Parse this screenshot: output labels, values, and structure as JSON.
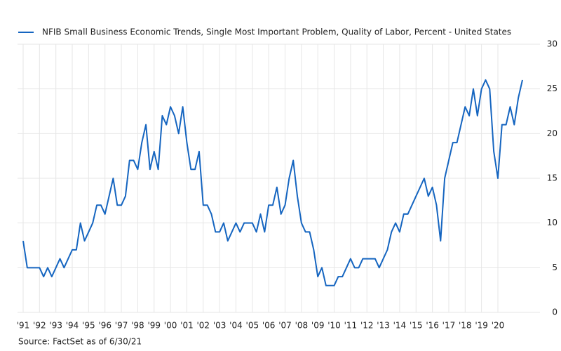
{
  "chart_data": {
    "type": "line",
    "x": [
      1991,
      1991.25,
      1991.5,
      1991.75,
      1992,
      1992.25,
      1992.5,
      1992.75,
      1993,
      1993.25,
      1993.5,
      1993.75,
      1994,
      1994.25,
      1994.5,
      1994.75,
      1995,
      1995.25,
      1995.5,
      1995.75,
      1996,
      1996.25,
      1996.5,
      1996.75,
      1997,
      1997.25,
      1997.5,
      1997.75,
      1998,
      1998.25,
      1998.5,
      1998.75,
      1999,
      1999.25,
      1999.5,
      1999.75,
      2000,
      2000.25,
      2000.5,
      2000.75,
      2001,
      2001.25,
      2001.5,
      2001.75,
      2002,
      2002.25,
      2002.5,
      2002.75,
      2003,
      2003.25,
      2003.5,
      2003.75,
      2004,
      2004.25,
      2004.5,
      2004.75,
      2005,
      2005.25,
      2005.5,
      2005.75,
      2006,
      2006.25,
      2006.5,
      2006.75,
      2007,
      2007.25,
      2007.5,
      2007.75,
      2008,
      2008.25,
      2008.5,
      2008.75,
      2009,
      2009.25,
      2009.5,
      2009.75,
      2010,
      2010.25,
      2010.5,
      2010.75,
      2011,
      2011.25,
      2011.5,
      2011.75,
      2012,
      2012.25,
      2012.5,
      2012.75,
      2013,
      2013.25,
      2013.5,
      2013.75,
      2014,
      2014.25,
      2014.5,
      2014.75,
      2015,
      2015.25,
      2015.5,
      2015.75,
      2016,
      2016.25,
      2016.5,
      2016.75,
      2017,
      2017.25,
      2017.5,
      2017.75,
      2018,
      2018.25,
      2018.5,
      2018.75,
      2019,
      2019.25,
      2019.5,
      2019.75,
      2020,
      2020.25,
      2020.5,
      2020.75,
      2021,
      2021.25,
      2021.5
    ],
    "series": [
      {
        "name": "NFIB Small Business Economic Trends, Single Most Important Problem, Quality of Labor, Percent - United States",
        "color": "#1565c0",
        "values": [
          8,
          5,
          5,
          5,
          5,
          4,
          5,
          4,
          5,
          6,
          5,
          6,
          7,
          7,
          10,
          8,
          9,
          10,
          12,
          12,
          11,
          13,
          15,
          12,
          12,
          13,
          17,
          17,
          16,
          19,
          21,
          16,
          18,
          16,
          22,
          21,
          23,
          22,
          20,
          23,
          19,
          16,
          16,
          18,
          12,
          12,
          11,
          9,
          9,
          10,
          8,
          9,
          10,
          9,
          10,
          10,
          10,
          9,
          11,
          9,
          12,
          12,
          14,
          11,
          12,
          15,
          17,
          13,
          10,
          9,
          9,
          7,
          4,
          5,
          3,
          3,
          3,
          4,
          4,
          5,
          6,
          5,
          5,
          6,
          6,
          6,
          6,
          5,
          6,
          7,
          9,
          10,
          9,
          11,
          11,
          12,
          13,
          14,
          15,
          13,
          14,
          12,
          8,
          15,
          17,
          19,
          19,
          21,
          23,
          22,
          25,
          22,
          25,
          26,
          25,
          18,
          15,
          21,
          21,
          23,
          21,
          24,
          26
        ]
      }
    ],
    "xlim": [
      1991,
      2021.5
    ],
    "xticks": [
      {
        "value": 1991,
        "label": "'91"
      },
      {
        "value": 1992,
        "label": "'92"
      },
      {
        "value": 1993,
        "label": "'93"
      },
      {
        "value": 1994,
        "label": "'94"
      },
      {
        "value": 1995,
        "label": "'95"
      },
      {
        "value": 1996,
        "label": "'96"
      },
      {
        "value": 1997,
        "label": "'97"
      },
      {
        "value": 1998,
        "label": "'98"
      },
      {
        "value": 1999,
        "label": "'99"
      },
      {
        "value": 2000,
        "label": "'00"
      },
      {
        "value": 2001,
        "label": "'01"
      },
      {
        "value": 2002,
        "label": "'02"
      },
      {
        "value": 2003,
        "label": "'03"
      },
      {
        "value": 2004,
        "label": "'04"
      },
      {
        "value": 2005,
        "label": "'05"
      },
      {
        "value": 2006,
        "label": "'06"
      },
      {
        "value": 2007,
        "label": "'07"
      },
      {
        "value": 2008,
        "label": "'08"
      },
      {
        "value": 2009,
        "label": "'09"
      },
      {
        "value": 2010,
        "label": "'10"
      },
      {
        "value": 2011,
        "label": "'11"
      },
      {
        "value": 2012,
        "label": "'12"
      },
      {
        "value": 2013,
        "label": "'13"
      },
      {
        "value": 2014,
        "label": "'14"
      },
      {
        "value": 2015,
        "label": "'15"
      },
      {
        "value": 2016,
        "label": "'16"
      },
      {
        "value": 2017,
        "label": "'17"
      },
      {
        "value": 2018,
        "label": "'18"
      },
      {
        "value": 2019,
        "label": "'19"
      },
      {
        "value": 2020,
        "label": "'20"
      }
    ],
    "ylim": [
      0,
      30
    ],
    "yticks": [
      0,
      5,
      10,
      15,
      20,
      25,
      30
    ],
    "grid": true,
    "legend": "top-left",
    "source": "Source: FactSet as of 6/30/21"
  }
}
